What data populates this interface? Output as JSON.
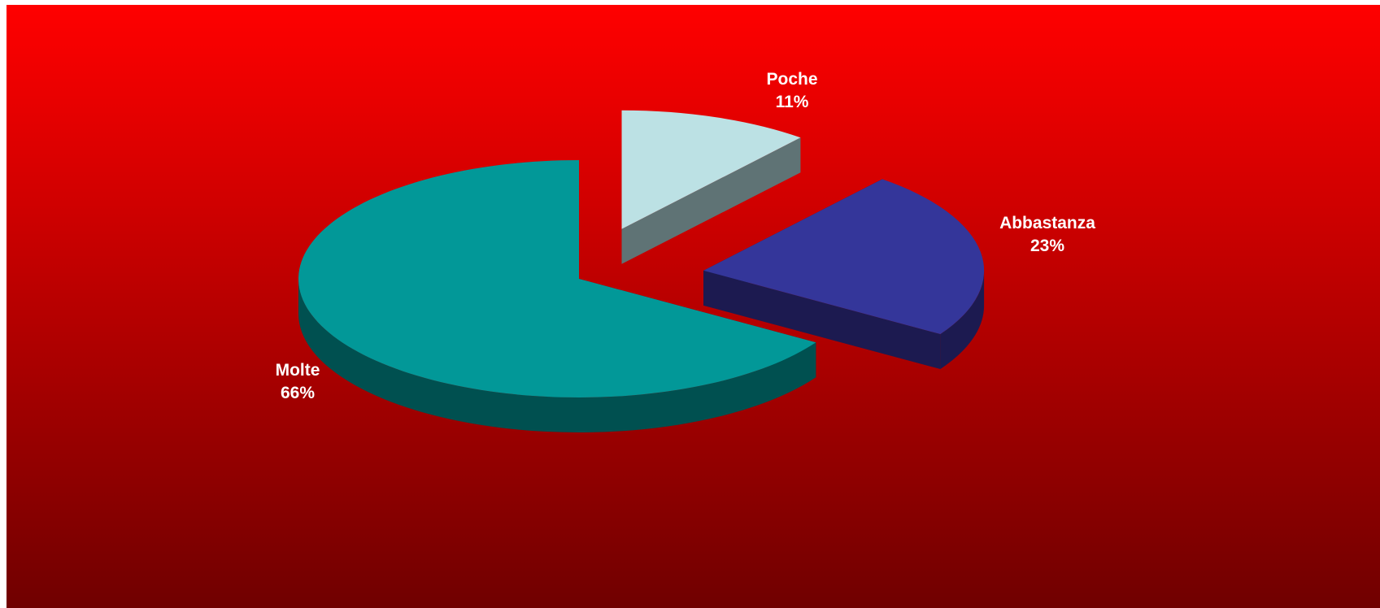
{
  "chart_data": {
    "type": "pie",
    "title": "",
    "variant": "3d-exploded",
    "start_angle_deg": -90,
    "direction": "clockwise",
    "slices": [
      {
        "label": "Poche",
        "value": 11,
        "value_label": "11%",
        "exploded": true,
        "color": "#BCE1E4",
        "side_color": "#5F7375"
      },
      {
        "label": "Abbastanza",
        "value": 23,
        "value_label": "23%",
        "exploded": true,
        "color": "#34369A",
        "side_color": "#1C1A50"
      },
      {
        "label": "Molte",
        "value": 66,
        "value_label": "66%",
        "exploded": false,
        "color": "#029898",
        "side_color": "#005050"
      }
    ],
    "legend": false,
    "background": {
      "top": "#FF0000",
      "bottom": "#700000"
    }
  }
}
